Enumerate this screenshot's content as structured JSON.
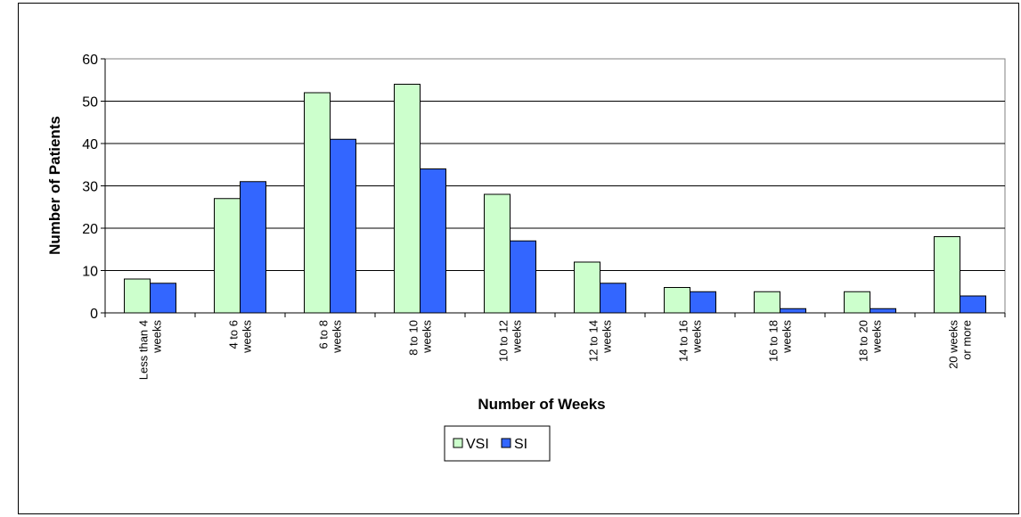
{
  "chart_data": {
    "type": "bar",
    "title": "",
    "xlabel": "Number of Weeks",
    "ylabel": "Number of Patients",
    "ylim": [
      0,
      60
    ],
    "yticks": [
      0,
      10,
      20,
      30,
      40,
      50,
      60
    ],
    "grid": true,
    "legend_position": "bottom",
    "categories": [
      [
        "Less than 4",
        "weeks"
      ],
      [
        "4 to 6",
        "weeks"
      ],
      [
        "6 to 8",
        "weeks"
      ],
      [
        "8 to 10",
        "weeks"
      ],
      [
        "10 to 12",
        "weeks"
      ],
      [
        "12 to 14",
        "weeks"
      ],
      [
        "14 to 16",
        "weeks"
      ],
      [
        "16 to 18",
        "weeks"
      ],
      [
        "18 to 20",
        "weeks"
      ],
      [
        "20 weeks",
        "or more"
      ]
    ],
    "series": [
      {
        "name": "VSI",
        "color": "#ccffcc",
        "values": [
          8,
          27,
          52,
          54,
          28,
          12,
          6,
          5,
          5,
          18
        ]
      },
      {
        "name": "SI",
        "color": "#3366ff",
        "values": [
          7,
          31,
          41,
          34,
          17,
          7,
          5,
          1,
          1,
          4
        ]
      }
    ]
  }
}
